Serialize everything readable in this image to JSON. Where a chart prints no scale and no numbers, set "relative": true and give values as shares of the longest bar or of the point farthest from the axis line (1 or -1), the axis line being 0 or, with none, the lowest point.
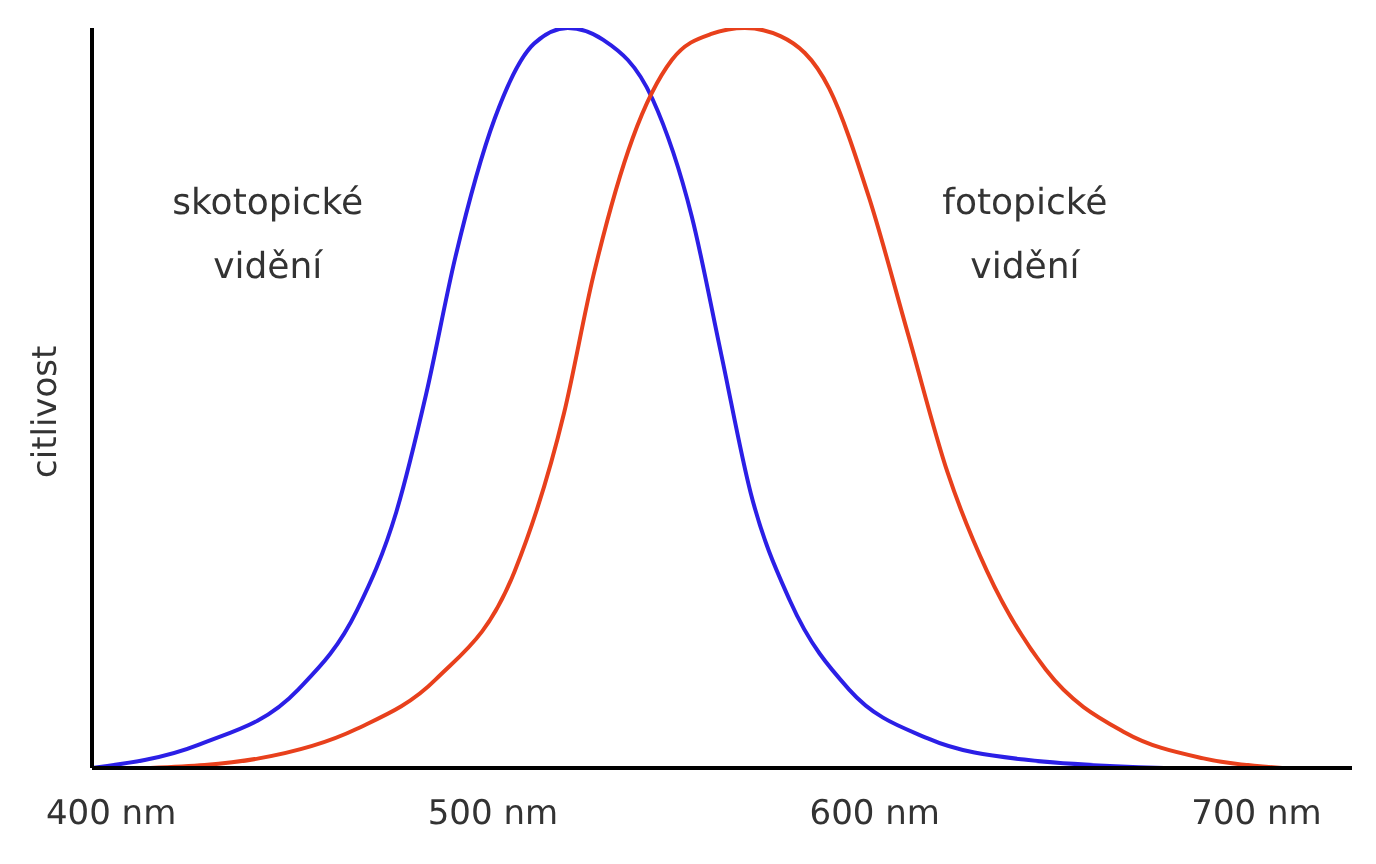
{
  "chart_data": {
    "type": "line",
    "relative": true,
    "ylabel": "citlivost",
    "xlim": [
      395,
      725
    ],
    "xticks": [
      {
        "value": 400,
        "label": "400 nm"
      },
      {
        "value": 500,
        "label": "500 nm"
      },
      {
        "value": 600,
        "label": "600 nm"
      },
      {
        "value": 700,
        "label": "700 nm"
      }
    ],
    "grid": false,
    "legend": false,
    "marker": "none",
    "line_style": "solid",
    "series": [
      {
        "name": "skotopické vidění",
        "color": "#2b1fe6",
        "x": [
          395,
          423.2,
          449,
          464.4,
          474.7,
          482.5,
          490.2,
          500.5,
          510.8,
          519.6,
          528.9,
          541.8,
          552.1,
          559.8,
          567.5,
          577.8,
          593.3,
          613.9,
          639.7,
          675.8
        ],
        "values": [
          0,
          0.032,
          0.106,
          0.213,
          0.346,
          0.505,
          0.691,
          0.878,
          0.979,
          1,
          0.984,
          0.904,
          0.745,
          0.559,
          0.372,
          0.226,
          0.106,
          0.04,
          0.011,
          0
        ]
      },
      {
        "name": "fotopické vidění",
        "color": "#e8401c",
        "x": [
          410.3,
          438.7,
          464.4,
          485.1,
          505.7,
          518.6,
          526.3,
          536.6,
          546.9,
          557.2,
          566,
          575.3,
          588.1,
          598.5,
          608.8,
          619.1,
          629.4,
          644.8,
          665.5,
          686.1,
          706.7
        ],
        "values": [
          0,
          0.013,
          0.053,
          0.12,
          0.266,
          0.479,
          0.665,
          0.851,
          0.957,
          0.992,
          1,
          0.989,
          0.918,
          0.771,
          0.585,
          0.399,
          0.266,
          0.133,
          0.048,
          0.013,
          0
        ]
      }
    ]
  }
}
